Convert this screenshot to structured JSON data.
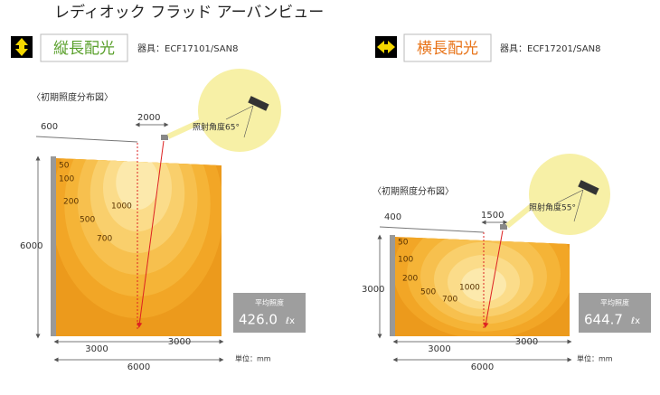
{
  "title": "レディオック フラッド アーバンビュー",
  "panels": [
    {
      "mode_label": "縦長配光",
      "fixture": "器具：ECF17101/SAN8",
      "section_label": "〈初期照度分布図〉",
      "offset": "600",
      "distance": "2000",
      "angle_label": "照射角度65°",
      "contours": [
        "50",
        "100",
        "200",
        "500",
        "700",
        "1000"
      ],
      "height": "6000",
      "half_left": "3000",
      "half_right": "3000",
      "width": "6000",
      "avg_label": "平均照度",
      "avg_value": "426.0",
      "avg_unit": "ℓx",
      "unit_note": "単位：mm"
    },
    {
      "mode_label": "横長配光",
      "fixture": "器具：ECF17201/SAN8",
      "section_label": "〈初期照度分布図〉",
      "offset": "400",
      "distance": "1500",
      "angle_label": "照射角度55°",
      "contours": [
        "50",
        "100",
        "200",
        "500",
        "700",
        "1000"
      ],
      "height": "3000",
      "half_left": "3000",
      "half_right": "3000",
      "width": "6000",
      "avg_label": "平均照度",
      "avg_value": "644.7",
      "avg_unit": "ℓx",
      "unit_note": "単位：mm"
    }
  ]
}
